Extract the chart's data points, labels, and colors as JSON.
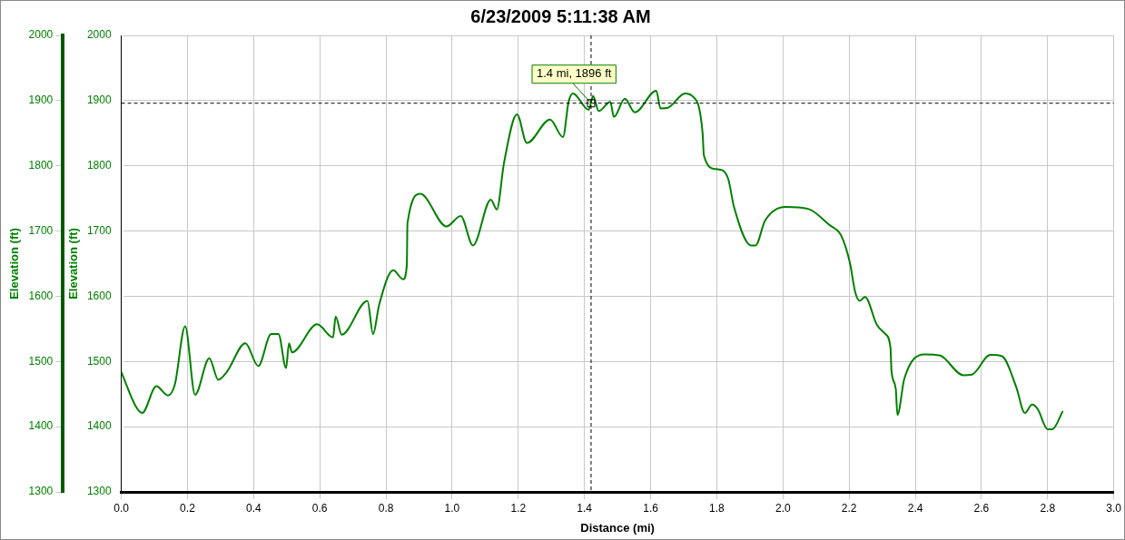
{
  "chart_data": {
    "type": "line",
    "title": "6/23/2009 5:11:38 AM",
    "xlabel": "Distance (mi)",
    "ylabel": "Elevation (ft)",
    "y2label": "Elevation (ft)",
    "xlim": [
      0,
      3
    ],
    "xticks": [
      {
        "value": 0,
        "label": "0.0"
      },
      0.2,
      0.4,
      0.6,
      0.8,
      {
        "value": 1,
        "label": "1.0"
      },
      1.2,
      1.4,
      1.6,
      1.8,
      {
        "value": 2,
        "label": "2.0"
      },
      2.2,
      2.4,
      2.6,
      2.8,
      {
        "value": 3,
        "label": "3.0"
      }
    ],
    "ylim": [
      1300,
      2000
    ],
    "yticks": [
      1300,
      1400,
      1500,
      1600,
      1700,
      1800,
      1900,
      2000
    ],
    "y2lim": [
      1300,
      2000
    ],
    "y2ticks": [
      1300,
      1400,
      1500,
      1600,
      1700,
      1800,
      1900,
      2000
    ],
    "grid": true,
    "legend": false,
    "marker": "none",
    "line_style": "solid",
    "ref_lines": [
      {
        "axis": "x",
        "value": 1.42,
        "color": "#000000",
        "line_style": "dashed"
      },
      {
        "axis": "y",
        "value": 1896,
        "color": "#000000",
        "line_style": "dashed"
      }
    ],
    "annotations": [
      {
        "text": "1.4 mi, 1896 ft",
        "x": 1.42,
        "y": 1896
      }
    ],
    "series": [
      {
        "color": "#008000",
        "x": [
          0,
          0.045,
          0.063,
          0.106,
          0.141,
          0.162,
          0.193,
          0.223,
          0.266,
          0.293,
          0.319,
          0.375,
          0.414,
          0.453,
          0.475,
          0.498,
          0.507,
          0.516,
          0.592,
          0.64,
          0.648,
          0.666,
          0.744,
          0.761,
          0.779,
          0.822,
          0.852,
          0.863,
          0.865,
          0.904,
          0.983,
          1.026,
          1.063,
          1.117,
          1.135,
          1.157,
          1.196,
          1.226,
          1.296,
          1.335,
          1.352,
          1.365,
          1.413,
          1.426,
          1.443,
          1.478,
          1.489,
          1.522,
          1.552,
          1.617,
          1.63,
          1.652,
          1.704,
          1.726,
          1.757,
          1.761,
          1.796,
          1.817,
          1.835,
          1.852,
          1.904,
          1.917,
          1.946,
          2.007,
          2.076,
          2.141,
          2.176,
          2.202,
          2.219,
          2.232,
          2.248,
          2.284,
          2.31,
          2.325,
          2.328,
          2.341,
          2.346,
          2.367,
          2.428,
          2.475,
          2.545,
          2.571,
          2.627,
          2.662,
          2.705,
          2.731,
          2.753,
          2.77,
          2.8,
          2.814,
          2.846
        ],
        "values": [
          1484,
          1430,
          1421,
          1462,
          1448,
          1465,
          1554,
          1449,
          1505,
          1472,
          1484,
          1528,
          1493,
          1542,
          1542,
          1490,
          1528,
          1514,
          1557,
          1537,
          1569,
          1541,
          1593,
          1542,
          1586,
          1640,
          1626,
          1647,
          1712,
          1757,
          1707,
          1723,
          1678,
          1748,
          1733,
          1805,
          1879,
          1835,
          1871,
          1844,
          1898,
          1911,
          1886,
          1907,
          1884,
          1898,
          1875,
          1903,
          1882,
          1915,
          1888,
          1889,
          1911,
          1907,
          1851,
          1816,
          1795,
          1793,
          1779,
          1737,
          1678,
          1678,
          1716,
          1737,
          1734,
          1709,
          1693,
          1652,
          1605,
          1593,
          1599,
          1556,
          1542,
          1521,
          1486,
          1458,
          1418,
          1474,
          1511,
          1509,
          1479,
          1480,
          1510,
          1508,
          1461,
          1421,
          1434,
          1427,
          1396,
          1396,
          1424
        ]
      }
    ]
  }
}
